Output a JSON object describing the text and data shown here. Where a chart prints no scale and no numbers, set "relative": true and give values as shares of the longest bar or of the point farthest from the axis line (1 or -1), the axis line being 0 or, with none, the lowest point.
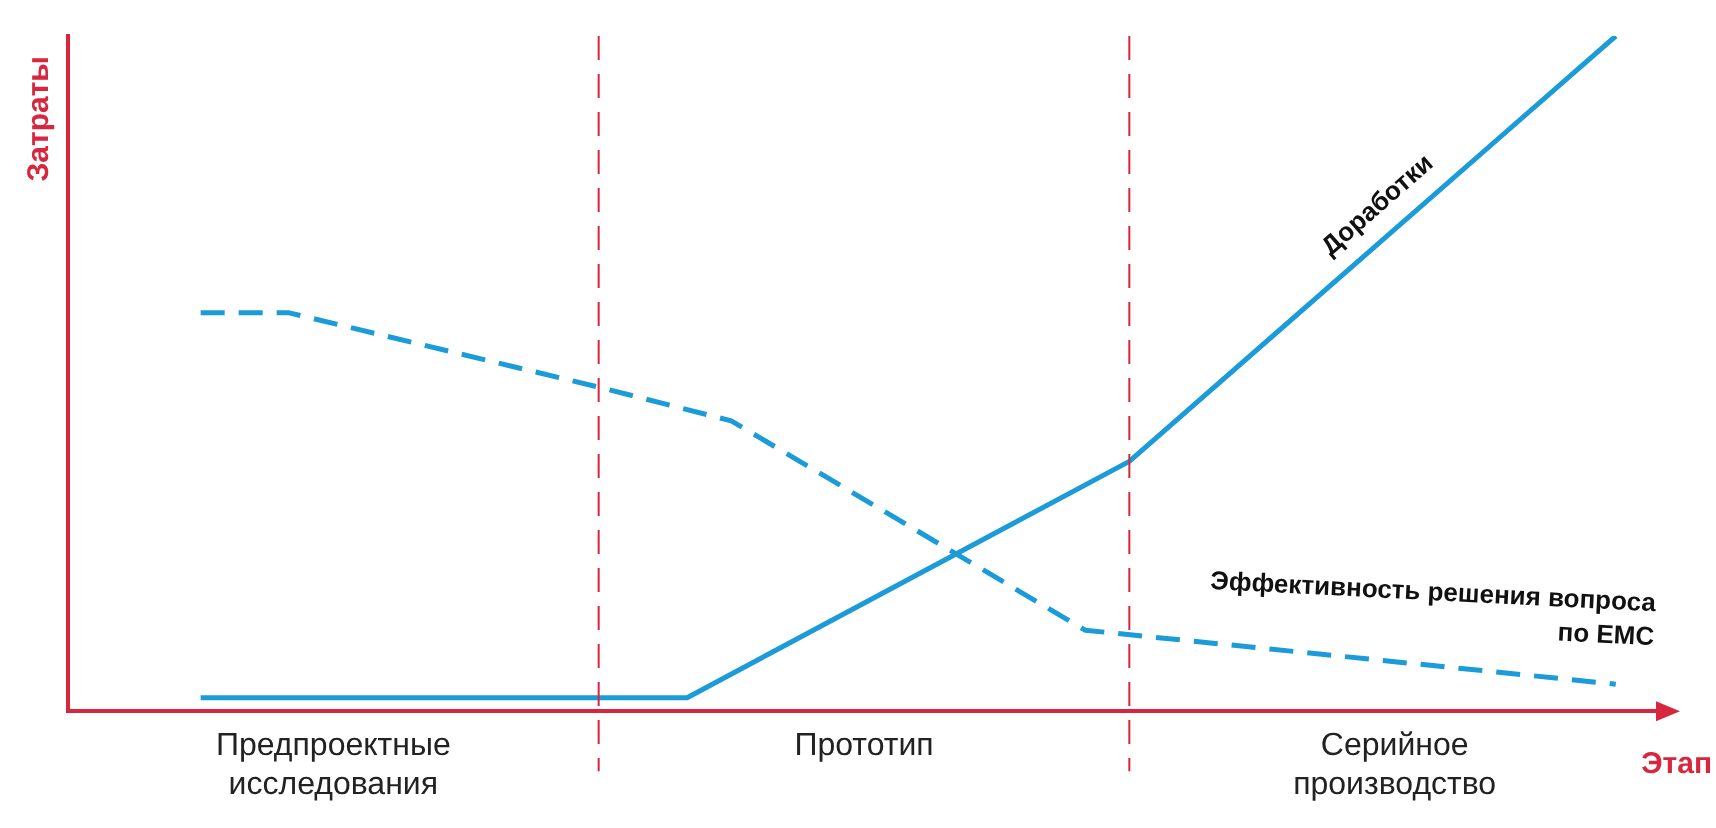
{
  "chart_data": {
    "type": "line",
    "relative": true,
    "xlabel": "Этап",
    "ylabel": "Затраты",
    "categories": [
      null,
      null,
      null,
      null,
      null,
      null,
      "Предпроектные исследования",
      null,
      null,
      null,
      null,
      null,
      null,
      null,
      null,
      null,
      null,
      null,
      "Прототип",
      null,
      null,
      null,
      null,
      null,
      null,
      null,
      null,
      null,
      null,
      null,
      "Серийное производство",
      null,
      null,
      null,
      null,
      null,
      null
    ],
    "series": [
      {
        "name": "Доработки",
        "color": "#1b9bd7",
        "line_style": "solid",
        "values": [
          null,
          null,
          null,
          0.02,
          null,
          null,
          null,
          null,
          null,
          null,
          null,
          null,
          null,
          null,
          0.02,
          null,
          null,
          null,
          null,
          null,
          null,
          null,
          null,
          null,
          0.37,
          null,
          null,
          null,
          null,
          null,
          null,
          null,
          null,
          null,
          null,
          1,
          null
        ]
      },
      {
        "name": "Эффективность решения вопроса по EMC",
        "color": "#1b9bd7",
        "line_style": "dashed",
        "values": [
          null,
          null,
          null,
          0.59,
          null,
          0.59,
          null,
          null,
          null,
          null,
          null,
          null,
          0.48,
          null,
          null,
          0.43,
          null,
          null,
          null,
          null,
          null,
          null,
          null,
          0.12,
          null,
          null,
          null,
          null,
          null,
          null,
          null,
          null,
          null,
          null,
          null,
          0.04,
          null
        ]
      }
    ],
    "grid": "x",
    "legend": false,
    "marker": "none"
  }
}
